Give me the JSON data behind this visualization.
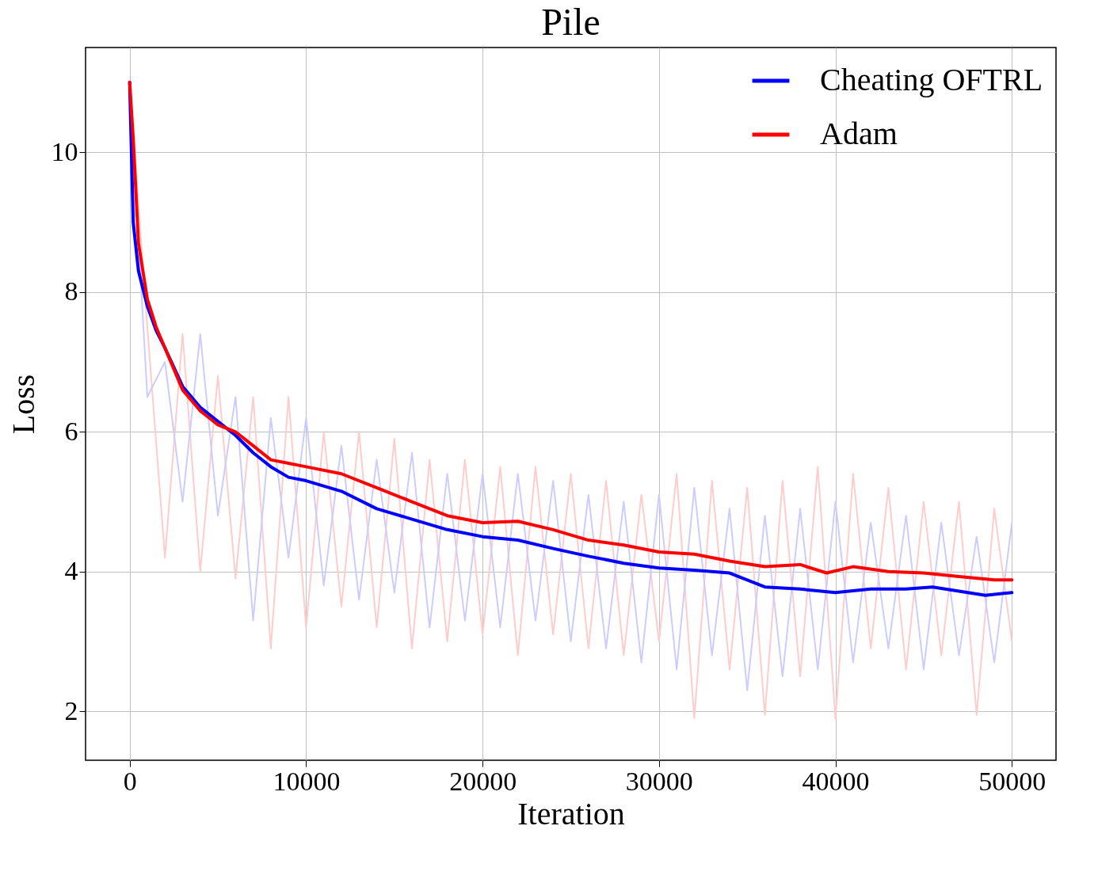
{
  "chart_data": {
    "type": "line",
    "title": "Pile",
    "xlabel": "Iteration",
    "ylabel": "Loss",
    "xlim": [
      -2500,
      52500
    ],
    "ylim": [
      1.3,
      11.5
    ],
    "xticks": [
      0,
      10000,
      20000,
      30000,
      40000,
      50000
    ],
    "yticks": [
      2,
      4,
      6,
      8,
      10
    ],
    "grid": true,
    "legend": "top right",
    "line_style": "solid",
    "marker": "none",
    "series": [
      {
        "color": "#ffcccc",
        "x": [
          0,
          1000,
          2000,
          3000,
          4000,
          5000,
          6000,
          7000,
          8000,
          9000,
          10000,
          11000,
          12000,
          13000,
          14000,
          15000,
          16000,
          17000,
          18000,
          19000,
          20000,
          21000,
          22000,
          23000,
          24000,
          25000,
          26000,
          27000,
          28000,
          29000,
          30000,
          31000,
          32000,
          33000,
          34000,
          35000,
          36000,
          37000,
          38000,
          39000,
          40000,
          41000,
          42000,
          43000,
          44000,
          45000,
          46000,
          47000,
          48000,
          49000,
          50000
        ],
        "values": [
          11.0,
          7.5,
          4.2,
          7.4,
          4.0,
          6.8,
          3.9,
          6.5,
          2.9,
          6.5,
          3.2,
          6.0,
          3.5,
          6.0,
          3.2,
          5.9,
          2.9,
          5.6,
          3.0,
          5.6,
          3.1,
          5.5,
          2.8,
          5.5,
          3.1,
          5.4,
          2.9,
          5.3,
          2.8,
          5.1,
          3.0,
          5.4,
          1.9,
          5.3,
          2.6,
          5.2,
          1.95,
          5.3,
          2.5,
          5.5,
          1.9,
          5.4,
          2.9,
          5.2,
          2.6,
          5.0,
          2.8,
          5.0,
          1.95,
          4.9,
          3.0
        ]
      },
      {
        "color": "#ccccff",
        "x": [
          0,
          1000,
          2000,
          3000,
          4000,
          5000,
          6000,
          7000,
          8000,
          9000,
          10000,
          11000,
          12000,
          13000,
          14000,
          15000,
          16000,
          17000,
          18000,
          19000,
          20000,
          21000,
          22000,
          23000,
          24000,
          25000,
          26000,
          27000,
          28000,
          29000,
          30000,
          31000,
          32000,
          33000,
          34000,
          35000,
          36000,
          37000,
          38000,
          39000,
          40000,
          41000,
          42000,
          43000,
          44000,
          45000,
          46000,
          47000,
          48000,
          49000,
          50000
        ],
        "values": [
          11.0,
          6.5,
          7.0,
          5.0,
          7.4,
          4.8,
          6.5,
          3.3,
          6.2,
          4.2,
          6.2,
          3.8,
          5.8,
          3.6,
          5.6,
          3.7,
          5.7,
          3.2,
          5.4,
          3.3,
          5.4,
          3.2,
          5.4,
          3.3,
          5.3,
          3.0,
          5.1,
          2.9,
          5.0,
          2.7,
          5.1,
          2.6,
          5.2,
          2.8,
          4.9,
          2.3,
          4.8,
          2.5,
          4.9,
          2.6,
          5.0,
          2.7,
          4.7,
          2.9,
          4.8,
          2.6,
          4.7,
          2.8,
          4.5,
          2.7,
          4.7
        ]
      },
      {
        "name": "Cheating OFTRL",
        "color": "#0000ff",
        "x": [
          0,
          200,
          500,
          1000,
          1500,
          2000,
          3000,
          4000,
          5000,
          6000,
          7000,
          8000,
          9000,
          10000,
          12000,
          14000,
          16000,
          18000,
          20000,
          22000,
          24000,
          26000,
          28000,
          30000,
          32000,
          34000,
          36000,
          38000,
          40000,
          42000,
          44000,
          45500,
          47000,
          48500,
          50000
        ],
        "values": [
          11.0,
          9.0,
          8.3,
          7.8,
          7.45,
          7.2,
          6.65,
          6.35,
          6.15,
          5.95,
          5.7,
          5.5,
          5.35,
          5.3,
          5.15,
          4.9,
          4.75,
          4.6,
          4.5,
          4.45,
          4.33,
          4.22,
          4.12,
          4.05,
          4.02,
          3.98,
          3.78,
          3.75,
          3.7,
          3.75,
          3.75,
          3.78,
          3.72,
          3.66,
          3.7
        ]
      },
      {
        "name": "Adam",
        "color": "#ff0000",
        "x": [
          0,
          200,
          500,
          1000,
          1500,
          2000,
          3000,
          4000,
          5000,
          6000,
          7000,
          8000,
          9000,
          10000,
          12000,
          14000,
          16000,
          18000,
          20000,
          22000,
          24000,
          26000,
          28000,
          30000,
          32000,
          34000,
          36000,
          38000,
          39500,
          41000,
          43000,
          45000,
          47000,
          49000,
          50000
        ],
        "values": [
          11.0,
          10.2,
          8.7,
          7.9,
          7.5,
          7.2,
          6.6,
          6.3,
          6.1,
          6.0,
          5.8,
          5.6,
          5.55,
          5.5,
          5.4,
          5.2,
          5.0,
          4.8,
          4.7,
          4.72,
          4.6,
          4.45,
          4.38,
          4.28,
          4.25,
          4.15,
          4.07,
          4.1,
          3.98,
          4.07,
          4.0,
          3.98,
          3.93,
          3.88,
          3.88
        ]
      }
    ]
  }
}
